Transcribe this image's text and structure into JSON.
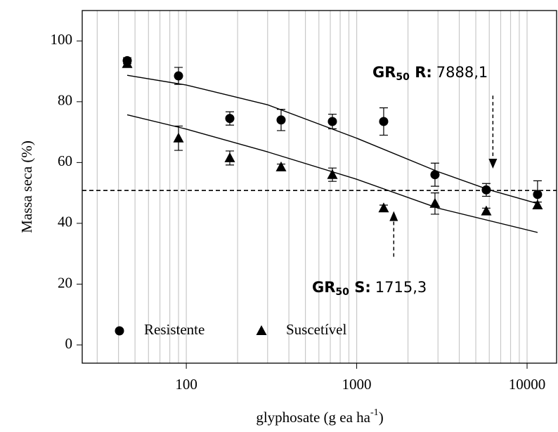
{
  "chart_data": {
    "type": "scatter",
    "xlabel": {
      "text": "glyphosate (g ea ha",
      "sup": "-1",
      "end": ")"
    },
    "ylabel": "Massa seca (%)",
    "xscale": "log",
    "xlim": [
      24.5,
      14900
    ],
    "ylim": [
      -6,
      110
    ],
    "xticks": [
      100,
      1000,
      10000
    ],
    "yticks": [
      0,
      20,
      40,
      60,
      80,
      100
    ],
    "xgrid": [
      30,
      40,
      50,
      60,
      70,
      80,
      90,
      100,
      200,
      300,
      400,
      500,
      600,
      700,
      800,
      900,
      1000,
      2000,
      3000,
      4000,
      5000,
      6000,
      7000,
      8000,
      9000,
      10000
    ],
    "grid_color": "#c8c8c8",
    "x": [
      45,
      90,
      180,
      360,
      720,
      1440,
      2880,
      5760,
      11520
    ],
    "series": [
      {
        "name": "Resistente",
        "marker": "circle",
        "color": "#000000",
        "values": [
          93.5,
          88.5,
          74.5,
          74,
          73.5,
          73.5,
          56,
          51,
          49.5
        ],
        "errors": [
          1,
          2.8,
          2.2,
          3.5,
          2.4,
          4.5,
          3.8,
          2.1,
          4.5
        ]
      },
      {
        "name": "Suscetível",
        "marker": "triangle",
        "color": "#000000",
        "values": [
          92.5,
          68,
          61.5,
          58.5,
          56,
          45,
          46.5,
          44,
          46
        ],
        "errors": [
          1,
          4,
          2.3,
          1,
          2.2,
          1,
          3.5,
          1,
          1
        ]
      }
    ],
    "curves": [
      {
        "x": [
          45,
          100,
          300,
          1000,
          3000,
          6000,
          11520
        ],
        "values": [
          88.7,
          85.5,
          79,
          68,
          57,
          51,
          46.5
        ]
      },
      {
        "x": [
          45,
          100,
          300,
          1000,
          3000,
          11520
        ],
        "values": [
          75.7,
          71,
          63.5,
          54.5,
          45,
          37
        ]
      }
    ],
    "reference_line": 50.8,
    "annotations": [
      {
        "prefix": "GR",
        "sub": "50",
        "label": " R:",
        "value": "7888,1",
        "arrow_x": 6300,
        "arrow_from": 82,
        "arrow_to": 58
      },
      {
        "prefix": "GR",
        "sub": "50",
        "label": " S:",
        "value": "1715,3",
        "arrow_x": 1650,
        "arrow_from": 29,
        "arrow_to": 44
      }
    ]
  }
}
